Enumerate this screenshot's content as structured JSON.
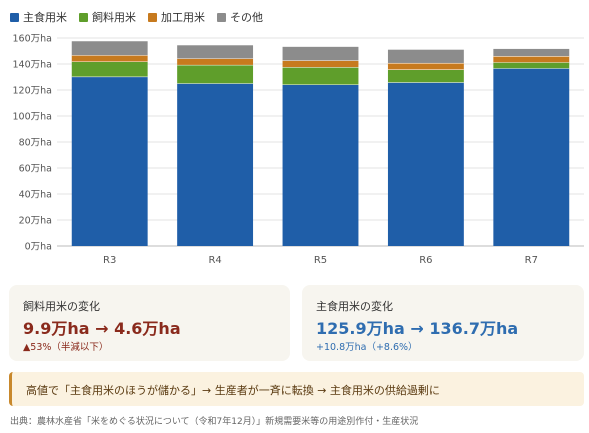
{
  "legend": [
    {
      "name": "主食用米",
      "color": "#1f5ea8"
    },
    {
      "name": "飼料用米",
      "color": "#5f9e2b"
    },
    {
      "name": "加工用米",
      "color": "#c77a1e"
    },
    {
      "name": "その他",
      "color": "#8c8c8c"
    }
  ],
  "chart_data": {
    "type": "bar",
    "stacked": true,
    "categories": [
      "R3",
      "R4",
      "R5",
      "R6",
      "R7"
    ],
    "y_unit": "万ha",
    "ylim": [
      0,
      160
    ],
    "yticks": [
      "0万ha",
      "20万ha",
      "40万ha",
      "60万ha",
      "80万ha",
      "100万ha",
      "120万ha",
      "140万ha",
      "160万ha"
    ],
    "grid": true,
    "series": [
      {
        "name": "主食用米",
        "color": "#1f5ea8",
        "values": [
          130.3,
          125.1,
          124.2,
          125.9,
          136.7
        ]
      },
      {
        "name": "飼料用米",
        "color": "#5f9e2b",
        "values": [
          11.6,
          14.2,
          13.4,
          9.9,
          4.6
        ]
      },
      {
        "name": "加工用米",
        "color": "#c77a1e",
        "values": [
          4.9,
          5.0,
          5.2,
          5.0,
          4.8
        ]
      },
      {
        "name": "その他",
        "color": "#8c8c8c",
        "values": [
          10.7,
          10.1,
          10.4,
          10.2,
          5.5
        ]
      }
    ]
  },
  "cards": {
    "feed": {
      "label": "飼料用米の変化",
      "value": "9.9万ha → 4.6万ha",
      "sub": "▲53%（半減以下）"
    },
    "main": {
      "label": "主食用米の変化",
      "value": "125.9万ha → 136.7万ha",
      "sub": "+10.8万ha（+8.6%）"
    }
  },
  "note": "高値で「主食用米のほうが儲かる」→ 生産者が一斉に転換 → 主食用米の供給過剰に",
  "source": "出典：農林水産省「米をめぐる状況について（令和7年12月）」新規需要米等の用途別作付・生産状況"
}
